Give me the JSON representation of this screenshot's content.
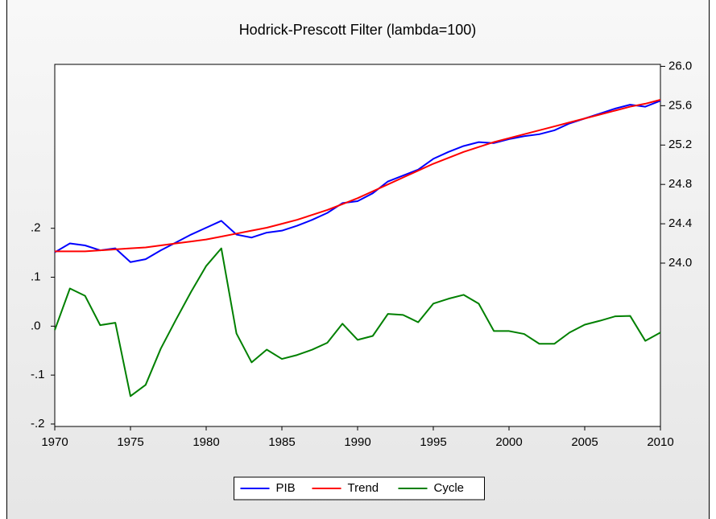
{
  "chart_data": {
    "type": "line",
    "title": "Hodrick-Prescott Filter (lambda=100)",
    "x": [
      1970,
      1971,
      1972,
      1973,
      1974,
      1975,
      1976,
      1977,
      1978,
      1979,
      1980,
      1981,
      1982,
      1983,
      1984,
      1985,
      1986,
      1987,
      1988,
      1989,
      1990,
      1991,
      1992,
      1993,
      1994,
      1995,
      1996,
      1997,
      1998,
      1999,
      2000,
      2001,
      2002,
      2003,
      2004,
      2005,
      2006,
      2007,
      2008,
      2009,
      2010
    ],
    "xlim": [
      1970,
      2010
    ],
    "xticks": [
      1970,
      1975,
      1980,
      1985,
      1990,
      1995,
      2000,
      2005,
      2010
    ],
    "ylim": [
      -0.205,
      0.535
    ],
    "yticks": [
      {
        "value": -0.2,
        "label": "-.2"
      },
      {
        "value": -0.1,
        "label": "-.1"
      },
      {
        "value": 0,
        "label": ".0"
      },
      {
        "value": 0.1,
        "label": ".1"
      },
      {
        "value": 0.2,
        "label": ".2"
      }
    ],
    "y2lim": [
      22.34,
      26.02
    ],
    "y2ticks": [
      {
        "value": 24.0,
        "label": "24.0"
      },
      24.4,
      24.8,
      25.2,
      25.6,
      {
        "value": 26.0,
        "label": "26.0"
      }
    ],
    "grid": false,
    "legend": "bottom",
    "series": [
      {
        "name": "PIB",
        "color": "#0000ff",
        "axis": "y2",
        "values": [
          24.11,
          24.2,
          24.18,
          24.13,
          24.15,
          24.01,
          24.04,
          24.13,
          24.21,
          24.29,
          24.36,
          24.43,
          24.29,
          24.26,
          24.31,
          24.33,
          24.38,
          24.44,
          24.51,
          24.61,
          24.63,
          24.71,
          24.83,
          24.89,
          24.95,
          25.06,
          25.13,
          25.19,
          25.23,
          25.22,
          25.26,
          25.29,
          25.31,
          25.35,
          25.42,
          25.47,
          25.52,
          25.57,
          25.61,
          25.59,
          25.65
        ]
      },
      {
        "name": "Trend",
        "color": "#ff0000",
        "axis": "y2",
        "values": [
          24.12,
          24.12,
          24.12,
          24.13,
          24.14,
          24.15,
          24.16,
          24.18,
          24.2,
          24.22,
          24.24,
          24.27,
          24.3,
          24.33,
          24.36,
          24.4,
          24.44,
          24.49,
          24.54,
          24.6,
          24.66,
          24.73,
          24.8,
          24.87,
          24.94,
          25.01,
          25.07,
          25.13,
          25.18,
          25.23,
          25.27,
          25.31,
          25.35,
          25.39,
          25.43,
          25.47,
          25.51,
          25.55,
          25.59,
          25.62,
          25.66
        ]
      },
      {
        "name": "Cycle",
        "color": "#008000",
        "values": [
          -0.008,
          0.077,
          0.062,
          0.002,
          0.007,
          -0.143,
          -0.12,
          -0.046,
          0.013,
          0.07,
          0.123,
          0.159,
          -0.015,
          -0.074,
          -0.048,
          -0.067,
          -0.059,
          -0.048,
          -0.034,
          0.005,
          -0.028,
          -0.02,
          0.025,
          0.023,
          0.008,
          0.046,
          0.056,
          0.064,
          0.046,
          -0.01,
          -0.01,
          -0.016,
          -0.036,
          -0.036,
          -0.013,
          0.003,
          0.011,
          0.02,
          0.021,
          -0.03,
          -0.013
        ]
      }
    ]
  }
}
